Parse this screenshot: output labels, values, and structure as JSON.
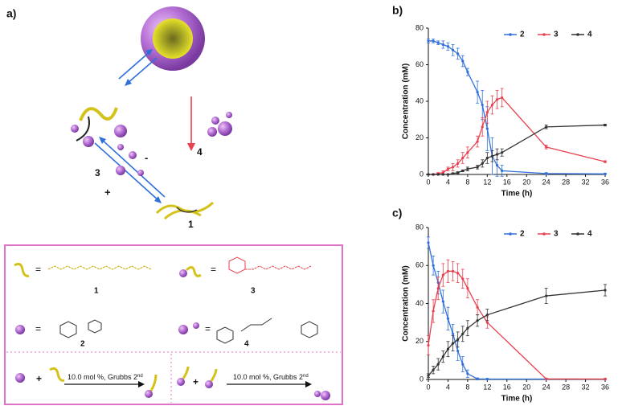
{
  "panel_a": "a)",
  "diagram": {
    "labels": {
      "three": "3",
      "four": "4",
      "one": "1"
    },
    "plus": "+",
    "minus": "-",
    "legend_box": {
      "items": [
        "1",
        "3",
        "2",
        "4"
      ],
      "equals": "=",
      "plus": "+",
      "reaction_text": "10.0 mol %, Grubbs 2",
      "reaction_sup": "nd"
    }
  },
  "chart_data": [
    {
      "type": "line",
      "panel": "b)",
      "xlabel": "Time (h)",
      "ylabel": "Concentration (mM)",
      "x": [
        0,
        1,
        2,
        3,
        4,
        5,
        6,
        7,
        8,
        10,
        11,
        12,
        13,
        14,
        15,
        24,
        36
      ],
      "xlim": [
        0,
        36
      ],
      "xticks": [
        0,
        4,
        8,
        12,
        16,
        20,
        24,
        28,
        32,
        36
      ],
      "ylim": [
        0,
        80
      ],
      "yticks": [
        0,
        20,
        40,
        60,
        80
      ],
      "legend": "top-right",
      "series": [
        {
          "name": "2",
          "color": "#2f6fdb",
          "values": [
            73,
            73,
            72,
            71,
            70,
            68,
            66,
            62,
            56,
            45,
            38,
            25,
            10,
            5,
            2,
            0.5,
            0.3
          ],
          "errors": [
            1,
            1,
            1,
            2,
            2,
            3,
            3,
            3,
            2,
            6,
            8,
            12,
            10,
            6,
            3,
            0.5,
            0.3
          ]
        },
        {
          "name": "3",
          "color": "#e8414f",
          "values": [
            0,
            0,
            0.5,
            1,
            3,
            4,
            6,
            9,
            12,
            18,
            26,
            34,
            38,
            41,
            42,
            15,
            7
          ],
          "errors": [
            0.3,
            0.3,
            0.5,
            1,
            1,
            2,
            2,
            3,
            3,
            3,
            5,
            6,
            5,
            5,
            5,
            1,
            0.5
          ]
        },
        {
          "name": "4",
          "color": "#333333",
          "values": [
            0,
            0,
            0,
            0,
            0,
            0.5,
            1,
            2,
            3,
            4,
            6,
            9,
            10,
            11,
            12,
            26,
            27
          ],
          "errors": [
            0.2,
            0.2,
            0.2,
            0.2,
            0.2,
            0.3,
            0.5,
            0.5,
            1,
            1,
            2,
            3,
            3,
            3,
            2,
            1,
            0.5
          ]
        }
      ]
    },
    {
      "type": "line",
      "panel": "c)",
      "xlabel": "Time (h)",
      "ylabel": "Concentration (mM)",
      "x": [
        0,
        1,
        2,
        3,
        4,
        5,
        6,
        7,
        8,
        10,
        12,
        24,
        36
      ],
      "xlim": [
        0,
        36
      ],
      "xticks": [
        0,
        4,
        8,
        12,
        16,
        20,
        24,
        28,
        32,
        36
      ],
      "ylim": [
        0,
        80
      ],
      "yticks": [
        0,
        20,
        40,
        60,
        80
      ],
      "legend": "top-right",
      "series": [
        {
          "name": "2",
          "color": "#2f6fdb",
          "values": [
            72,
            60,
            51,
            41,
            32,
            24,
            15,
            8,
            3,
            0.3,
            0.2,
            0.2,
            0.2
          ],
          "errors": [
            3,
            5,
            6,
            6,
            6,
            5,
            5,
            4,
            2,
            0.5,
            0.3,
            0.3,
            0.3
          ]
        },
        {
          "name": "3",
          "color": "#e8414f",
          "values": [
            18,
            36,
            48,
            55,
            57,
            57,
            56,
            53,
            48,
            38,
            30,
            0.3,
            0.2
          ],
          "errors": [
            5,
            6,
            6,
            6,
            6,
            5,
            5,
            5,
            5,
            4,
            3,
            0.3,
            0.3
          ]
        },
        {
          "name": "4",
          "color": "#333333",
          "values": [
            2,
            5,
            8,
            12,
            16,
            19,
            21,
            24,
            27,
            31,
            34,
            44,
            47
          ],
          "errors": [
            1,
            2,
            3,
            3,
            4,
            4,
            4,
            4,
            4,
            3,
            3,
            4,
            3
          ]
        }
      ]
    }
  ]
}
